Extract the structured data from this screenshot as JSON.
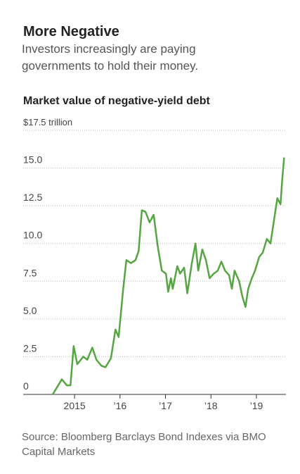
{
  "chart_data": {
    "type": "line",
    "title": "More Negative",
    "subtitle": "Investors increasingly are paying governments to hold their money.",
    "chart_title": "Market value of negative-yield debt",
    "source": "Source: Bloomberg Barclays Bond Indexes via BMO Capital Markets",
    "x": [
      2014.52,
      2014.72,
      2014.83,
      2014.91,
      2014.98,
      2015.06,
      2015.19,
      2015.28,
      2015.39,
      2015.48,
      2015.59,
      2015.68,
      2015.8,
      2015.9,
      2015.97,
      2016.07,
      2016.14,
      2016.24,
      2016.34,
      2016.41,
      2016.48,
      2016.56,
      2016.65,
      2016.74,
      2016.83,
      2016.92,
      2017.01,
      2017.06,
      2017.12,
      2017.16,
      2017.26,
      2017.32,
      2017.41,
      2017.48,
      2017.58,
      2017.66,
      2017.72,
      2017.81,
      2017.89,
      2017.97,
      2018.06,
      2018.15,
      2018.23,
      2018.31,
      2018.4,
      2018.46,
      2018.52,
      2018.62,
      2018.69,
      2018.76,
      2018.82,
      2018.9,
      2018.97,
      2019.06,
      2019.14,
      2019.23,
      2019.31,
      2019.39,
      2019.46,
      2019.53,
      2019.57,
      2019.61
    ],
    "series": [
      {
        "color": "#56a543",
        "values": [
          0,
          1.0,
          0.6,
          0.6,
          3.2,
          2.0,
          2.5,
          2.3,
          3.1,
          2.3,
          1.9,
          1.8,
          2.4,
          4.3,
          3.8,
          7.0,
          8.9,
          8.7,
          8.9,
          9.5,
          12.2,
          12.1,
          11.4,
          11.9,
          9.8,
          8.2,
          8.0,
          6.8,
          7.7,
          7.0,
          8.5,
          8.0,
          8.4,
          6.7,
          8.7,
          10.0,
          8.2,
          9.6,
          8.9,
          7.7,
          8.0,
          8.2,
          8.8,
          8.2,
          7.9,
          7.0,
          8.2,
          7.5,
          6.5,
          5.8,
          7.0,
          7.7,
          8.2,
          9.1,
          9.4,
          10.3,
          10.0,
          11.6,
          13.0,
          12.6,
          14.3,
          15.7
        ]
      }
    ],
    "xlim": [
      2013.87,
      2019.65
    ],
    "xticks": [
      2015,
      {
        "value": 2016,
        "label": "’16"
      },
      {
        "value": 2017,
        "label": "’17"
      },
      {
        "value": 2018,
        "label": "’18"
      },
      {
        "value": 2019,
        "label": "’19"
      }
    ],
    "ylim": [
      0,
      17.5
    ],
    "yticks": [
      0,
      2.5,
      {
        "value": 5,
        "label": "5.0"
      },
      7.5,
      {
        "value": 10,
        "label": "10.0"
      },
      12.5,
      {
        "value": 15,
        "label": "15.0"
      },
      {
        "value": 17.5,
        "label": "$17.5 trillion"
      }
    ],
    "grid": true
  }
}
